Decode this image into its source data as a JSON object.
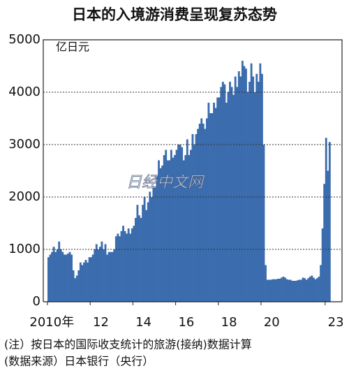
{
  "chart_data": {
    "type": "bar",
    "title": "日本的入境游消费呈现复苏态势",
    "unit_label": "亿日元",
    "watermark": "日经中文网",
    "notes": [
      "(注）按日本的国际收支统计的旅游(接纳)数据计算",
      "(数据来源）日本银行（央行）"
    ],
    "color": "#3b6cae",
    "grid": true,
    "ylim": [
      0,
      5000
    ],
    "yticks": [
      0,
      1000,
      2000,
      3000,
      4000,
      5000
    ],
    "categories": [
      "2010年",
      null,
      null,
      null,
      null,
      null,
      null,
      null,
      null,
      null,
      null,
      null,
      null,
      null,
      null,
      null,
      null,
      null,
      null,
      null,
      null,
      null,
      null,
      null,
      "12",
      null,
      null,
      null,
      null,
      null,
      null,
      null,
      null,
      null,
      null,
      null,
      null,
      null,
      null,
      null,
      null,
      null,
      null,
      null,
      null,
      null,
      null,
      null,
      "14",
      null,
      null,
      null,
      null,
      null,
      null,
      null,
      null,
      null,
      null,
      null,
      null,
      null,
      null,
      null,
      null,
      null,
      null,
      null,
      null,
      null,
      null,
      null,
      "16",
      null,
      null,
      null,
      null,
      null,
      null,
      null,
      null,
      null,
      null,
      null,
      null,
      null,
      null,
      null,
      null,
      null,
      null,
      null,
      null,
      null,
      null,
      null,
      "18",
      null,
      null,
      null,
      null,
      null,
      null,
      null,
      null,
      null,
      null,
      null,
      null,
      null,
      null,
      null,
      null,
      null,
      null,
      null,
      null,
      null,
      null,
      null,
      "20",
      null,
      null,
      null,
      null,
      null,
      null,
      null,
      null,
      null,
      null,
      null,
      null,
      null,
      null,
      null,
      null,
      null,
      null,
      null,
      null,
      null,
      null,
      null,
      null,
      null,
      null,
      null,
      null,
      null,
      null,
      null,
      null,
      null,
      null,
      null,
      "23",
      null,
      null
    ],
    "values": [
      850,
      900,
      950,
      1050,
      950,
      1000,
      1150,
      1000,
      950,
      900,
      900,
      920,
      950,
      900,
      600,
      450,
      500,
      600,
      750,
      700,
      750,
      800,
      750,
      850,
      850,
      900,
      1000,
      1100,
      1000,
      1050,
      1150,
      1000,
      1100,
      900,
      950,
      950,
      950,
      1000,
      1250,
      1300,
      1250,
      1350,
      1450,
      1350,
      1300,
      1400,
      1300,
      1400,
      1450,
      1600,
      1850,
      1650,
      1600,
      1850,
      2000,
      1750,
      1900,
      2100,
      2000,
      2200,
      2200,
      2400,
      2700,
      2550,
      2600,
      2800,
      2900,
      2700,
      2700,
      2900,
      2750,
      2800,
      2900,
      3000,
      3000,
      2950,
      2700,
      2800,
      3100,
      2800,
      2900,
      3200,
      3000,
      3200,
      3300,
      3400,
      3500,
      3400,
      3300,
      3500,
      3800,
      3600,
      3600,
      3800,
      3700,
      3900,
      3900,
      4100,
      4200,
      4150,
      3800,
      4000,
      4200,
      4100,
      3950,
      4300,
      4100,
      4400,
      4300,
      4600,
      4500,
      4450,
      4000,
      4200,
      4550,
      4300,
      4000,
      4350,
      4200,
      4550,
      4350,
      3000,
      700,
      420,
      420,
      420,
      430,
      430,
      430,
      440,
      440,
      460,
      480,
      460,
      430,
      420,
      420,
      400,
      400,
      400,
      410,
      420,
      420,
      460,
      450,
      420,
      450,
      480,
      500,
      460,
      430,
      450,
      480,
      700,
      1400,
      2250,
      3130,
      2500,
      3050
    ]
  }
}
